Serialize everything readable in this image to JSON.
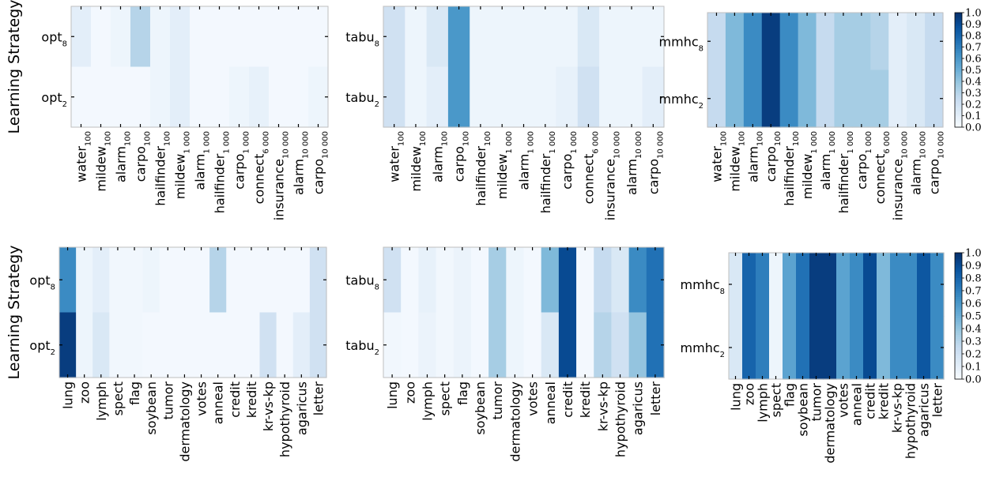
{
  "figure": {
    "row_ylabel": "Learning Strategy"
  },
  "colormap": {
    "name": "Blues",
    "stops": [
      "#f7fbff",
      "#deebf7",
      "#c6dbef",
      "#9ecae1",
      "#6baed6",
      "#4292c6",
      "#2171b5",
      "#08519c",
      "#08306b"
    ]
  },
  "chart_data": [
    {
      "type": "heatmap",
      "panel": "top-left",
      "show_ylabel": true,
      "categories": [
        {
          "base": "water",
          "sub": "100"
        },
        {
          "base": "mildew",
          "sub": "100"
        },
        {
          "base": "alarm",
          "sub": "100"
        },
        {
          "base": "carpo",
          "sub": "100"
        },
        {
          "base": "hailfinder",
          "sub": "100"
        },
        {
          "base": "mildew",
          "sub": "1 000"
        },
        {
          "base": "alarm",
          "sub": "1 000"
        },
        {
          "base": "hailfinder",
          "sub": "1 000"
        },
        {
          "base": "carpo",
          "sub": "1 000"
        },
        {
          "base": "connect",
          "sub": "6 000"
        },
        {
          "base": "insurance",
          "sub": "10 000"
        },
        {
          "base": "alarm",
          "sub": "10 000"
        },
        {
          "base": "carpo",
          "sub": "10 000"
        }
      ],
      "rows": [
        {
          "base": "opt",
          "sub": "8",
          "values": [
            0.1,
            0.02,
            0.05,
            0.3,
            0.05,
            0.1,
            0.02,
            0.02,
            0.02,
            0.02,
            0.02,
            0.02,
            0.02
          ]
        },
        {
          "base": "opt",
          "sub": "2",
          "values": [
            0.02,
            0.02,
            0.02,
            0.02,
            0.05,
            0.1,
            0.02,
            0.02,
            0.05,
            0.08,
            0.02,
            0.02,
            0.05
          ]
        }
      ],
      "vmin": 0,
      "vmax": 1
    },
    {
      "type": "heatmap",
      "panel": "top-middle",
      "show_ylabel": false,
      "categories": [
        {
          "base": "water",
          "sub": "100"
        },
        {
          "base": "mildew",
          "sub": "100"
        },
        {
          "base": "alarm",
          "sub": "100"
        },
        {
          "base": "carpo",
          "sub": "100"
        },
        {
          "base": "hailfinder",
          "sub": "100"
        },
        {
          "base": "mildew",
          "sub": "1 000"
        },
        {
          "base": "alarm",
          "sub": "1 000"
        },
        {
          "base": "hailfinder",
          "sub": "1 000"
        },
        {
          "base": "carpo",
          "sub": "1 000"
        },
        {
          "base": "connect",
          "sub": "6 000"
        },
        {
          "base": "insurance",
          "sub": "10 000"
        },
        {
          "base": "alarm",
          "sub": "10 000"
        },
        {
          "base": "carpo",
          "sub": "10 000"
        }
      ],
      "rows": [
        {
          "base": "tabu",
          "sub": "8",
          "values": [
            0.2,
            0.05,
            0.15,
            0.6,
            0.05,
            0.05,
            0.05,
            0.05,
            0.05,
            0.15,
            0.05,
            0.05,
            0.05
          ]
        },
        {
          "base": "tabu",
          "sub": "2",
          "values": [
            0.2,
            0.05,
            0.1,
            0.6,
            0.05,
            0.05,
            0.05,
            0.05,
            0.08,
            0.2,
            0.05,
            0.05,
            0.1
          ]
        }
      ],
      "vmin": 0,
      "vmax": 1
    },
    {
      "type": "heatmap",
      "panel": "top-right",
      "show_ylabel": false,
      "colorbar": true,
      "colorbar_ticks": [
        "0.0",
        "0.1",
        "0.2",
        "0.3",
        "0.4",
        "0.5",
        "0.6",
        "0.7",
        "0.8",
        "0.9",
        "1.0"
      ],
      "categories": [
        {
          "base": "water",
          "sub": "100"
        },
        {
          "base": "mildew",
          "sub": "100"
        },
        {
          "base": "alarm",
          "sub": "100"
        },
        {
          "base": "carpo",
          "sub": "100"
        },
        {
          "base": "hailfinder",
          "sub": "100"
        },
        {
          "base": "mildew",
          "sub": "1 000"
        },
        {
          "base": "alarm",
          "sub": "1 000"
        },
        {
          "base": "hailfinder",
          "sub": "1 000"
        },
        {
          "base": "carpo",
          "sub": "1 000"
        },
        {
          "base": "connect",
          "sub": "6 000"
        },
        {
          "base": "insurance",
          "sub": "10 000"
        },
        {
          "base": "alarm",
          "sub": "10 000"
        },
        {
          "base": "carpo",
          "sub": "10 000"
        }
      ],
      "rows": [
        {
          "base": "mmhc",
          "sub": "8",
          "values": [
            0.25,
            0.45,
            0.65,
            0.95,
            0.65,
            0.45,
            0.25,
            0.35,
            0.35,
            0.3,
            0.1,
            0.15,
            0.25
          ]
        },
        {
          "base": "mmhc",
          "sub": "2",
          "values": [
            0.25,
            0.45,
            0.65,
            0.95,
            0.65,
            0.45,
            0.25,
            0.35,
            0.35,
            0.35,
            0.1,
            0.15,
            0.25
          ]
        }
      ],
      "vmin": 0,
      "vmax": 1
    },
    {
      "type": "heatmap",
      "panel": "bottom-left",
      "show_ylabel": true,
      "categories": [
        {
          "base": "lung"
        },
        {
          "base": "zoo"
        },
        {
          "base": "lymph"
        },
        {
          "base": "spect"
        },
        {
          "base": "flag"
        },
        {
          "base": "soybean"
        },
        {
          "base": "tumor"
        },
        {
          "base": "dermatology"
        },
        {
          "base": "votes"
        },
        {
          "base": "anneal"
        },
        {
          "base": "credit"
        },
        {
          "base": "kredit"
        },
        {
          "base": "kr-vs-kp"
        },
        {
          "base": "hypothyroid"
        },
        {
          "base": "agaricus"
        },
        {
          "base": "letter"
        }
      ],
      "rows": [
        {
          "base": "opt",
          "sub": "8",
          "values": [
            0.65,
            0.05,
            0.1,
            0.03,
            0.03,
            0.05,
            0.02,
            0.02,
            0.02,
            0.3,
            0.02,
            0.02,
            0.02,
            0.02,
            0.02,
            0.2
          ]
        },
        {
          "base": "opt",
          "sub": "2",
          "values": [
            0.95,
            0.05,
            0.15,
            0.03,
            0.03,
            0.02,
            0.02,
            0.02,
            0.02,
            0.02,
            0.02,
            0.02,
            0.2,
            0.02,
            0.1,
            0.2
          ]
        }
      ],
      "vmin": 0,
      "vmax": 1
    },
    {
      "type": "heatmap",
      "panel": "bottom-middle",
      "show_ylabel": false,
      "categories": [
        {
          "base": "lung"
        },
        {
          "base": "zoo"
        },
        {
          "base": "lymph"
        },
        {
          "base": "spect"
        },
        {
          "base": "flag"
        },
        {
          "base": "soybean"
        },
        {
          "base": "tumor"
        },
        {
          "base": "dermatology"
        },
        {
          "base": "votes"
        },
        {
          "base": "anneal"
        },
        {
          "base": "credit"
        },
        {
          "base": "kredit"
        },
        {
          "base": "kr-vs-kp"
        },
        {
          "base": "hypothyroid"
        },
        {
          "base": "agaricus"
        },
        {
          "base": "letter"
        }
      ],
      "rows": [
        {
          "base": "tabu",
          "sub": "8",
          "values": [
            0.2,
            0.02,
            0.08,
            0.03,
            0.06,
            0.02,
            0.35,
            0.05,
            0.02,
            0.45,
            0.9,
            0.02,
            0.25,
            0.15,
            0.65,
            0.75
          ]
        },
        {
          "base": "tabu",
          "sub": "2",
          "values": [
            0.03,
            0.02,
            0.06,
            0.03,
            0.06,
            0.02,
            0.35,
            0.05,
            0.02,
            0.15,
            0.9,
            0.02,
            0.3,
            0.2,
            0.4,
            0.75
          ]
        }
      ],
      "vmin": 0,
      "vmax": 1
    },
    {
      "type": "heatmap",
      "panel": "bottom-right",
      "show_ylabel": false,
      "colorbar": true,
      "colorbar_ticks": [
        "0.0",
        "0.1",
        "0.2",
        "0.3",
        "0.4",
        "0.5",
        "0.6",
        "0.7",
        "0.8",
        "0.9",
        "1.0"
      ],
      "categories": [
        {
          "base": "lung"
        },
        {
          "base": "zoo"
        },
        {
          "base": "lymph"
        },
        {
          "base": "spect"
        },
        {
          "base": "flag"
        },
        {
          "base": "soybean"
        },
        {
          "base": "tumor"
        },
        {
          "base": "dermatology"
        },
        {
          "base": "votes"
        },
        {
          "base": "anneal"
        },
        {
          "base": "credit"
        },
        {
          "base": "kredit"
        },
        {
          "base": "kr-vs-kp"
        },
        {
          "base": "hypothyroid"
        },
        {
          "base": "agaricus"
        },
        {
          "base": "letter"
        }
      ],
      "rows": [
        {
          "base": "mmhc",
          "sub": "8",
          "values": [
            0.15,
            0.8,
            0.7,
            0.05,
            0.55,
            0.75,
            0.95,
            0.95,
            0.55,
            0.65,
            0.9,
            0.45,
            0.65,
            0.65,
            0.85,
            0.65
          ]
        },
        {
          "base": "mmhc",
          "sub": "2",
          "values": [
            0.15,
            0.8,
            0.7,
            0.05,
            0.55,
            0.75,
            0.95,
            0.95,
            0.55,
            0.65,
            0.9,
            0.45,
            0.65,
            0.65,
            0.85,
            0.65
          ]
        }
      ],
      "vmin": 0,
      "vmax": 1
    }
  ]
}
